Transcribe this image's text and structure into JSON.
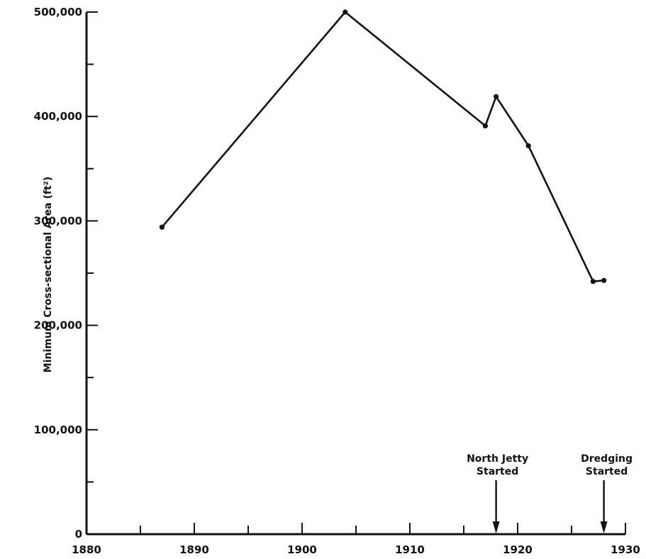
{
  "chart_data": {
    "type": "line",
    "title": "",
    "xlabel": "",
    "ylabel": "Minimum Cross-sectional Area (ft²)",
    "xlim": [
      1880,
      1930
    ],
    "ylim": [
      0,
      500000
    ],
    "x_ticks": [
      "1880",
      "1890",
      "1900",
      "1910",
      "1920",
      "1930"
    ],
    "y_ticks": [
      "0",
      "100,000",
      "200,000",
      "300,000",
      "400,000",
      "500,000"
    ],
    "grid": false,
    "x": [
      1887,
      1904,
      1917,
      1918,
      1921,
      1927,
      1928
    ],
    "values": [
      294000,
      500000,
      391000,
      419000,
      372000,
      242000,
      243000
    ],
    "annotations": [
      {
        "lines": [
          "North Jetty",
          "Started"
        ],
        "x": 1918
      },
      {
        "lines": [
          "Dredging",
          "Started"
        ],
        "x": 1928
      }
    ],
    "color": "#111111"
  }
}
